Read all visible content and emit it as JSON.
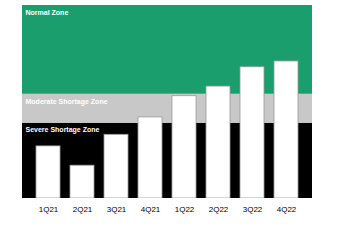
{
  "chart_data": {
    "type": "bar",
    "categories": [
      "1Q21",
      "2Q21",
      "3Q21",
      "4Q21",
      "1Q22",
      "2Q22",
      "3Q22",
      "4Q22"
    ],
    "values": [
      27,
      17,
      33,
      42,
      53,
      58,
      68,
      71
    ],
    "color": "#ffffff",
    "zones": [
      {
        "name": "Severe Shortage Zone",
        "from": 0,
        "to": 39,
        "color": "#000000"
      },
      {
        "name": "Moderate Shortage Zone",
        "from": 39,
        "to": 54,
        "color": "#c8c8c8"
      },
      {
        "name": "Normal Zone",
        "from": 54,
        "to": 100,
        "color": "#1b9e6e"
      }
    ],
    "ylim": [
      0,
      100
    ],
    "yticks": [],
    "tick_labels": "x",
    "grid": false
  }
}
